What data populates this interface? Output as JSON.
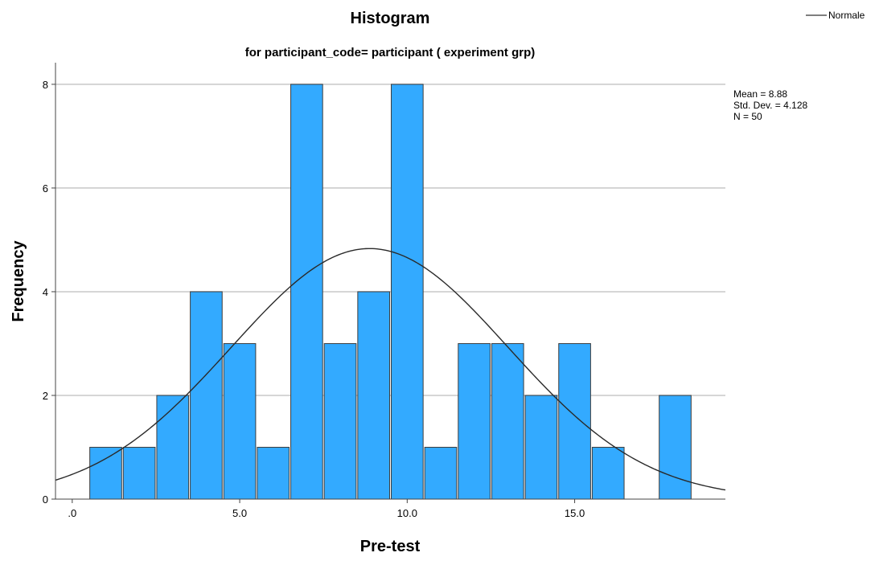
{
  "chart_data": {
    "type": "bar",
    "title": "Histogram",
    "subtitle": "for participant_code= participant ( experiment grp)",
    "xlabel": "Pre-test",
    "ylabel": "Frequency",
    "xlim": [
      -0.5,
      19.5
    ],
    "ylim": [
      0,
      8.2
    ],
    "x_ticks": [
      0,
      5,
      10,
      15
    ],
    "x_tick_labels": [
      ".0",
      "5.0",
      "10.0",
      "15.0"
    ],
    "y_ticks": [
      0,
      2,
      4,
      6,
      8
    ],
    "y_tick_labels": [
      "0",
      "2",
      "4",
      "6",
      "8"
    ],
    "grid": "horizontal",
    "bin_width": 1,
    "bins": [
      {
        "center": 1,
        "count": 1
      },
      {
        "center": 2,
        "count": 1
      },
      {
        "center": 3,
        "count": 2
      },
      {
        "center": 4,
        "count": 4
      },
      {
        "center": 5,
        "count": 3
      },
      {
        "center": 6,
        "count": 1
      },
      {
        "center": 7,
        "count": 8
      },
      {
        "center": 8,
        "count": 3
      },
      {
        "center": 9,
        "count": 4
      },
      {
        "center": 10,
        "count": 8
      },
      {
        "center": 11,
        "count": 1
      },
      {
        "center": 12,
        "count": 3
      },
      {
        "center": 13,
        "count": 3
      },
      {
        "center": 14,
        "count": 2
      },
      {
        "center": 15,
        "count": 3
      },
      {
        "center": 16,
        "count": 1
      },
      {
        "center": 18,
        "count": 2
      }
    ],
    "normal_curve": {
      "name": "Normale",
      "mean": 8.88,
      "sd": 4.128,
      "n": 50
    },
    "stats_lines": [
      "Mean = 8.88",
      "Std. Dev. = 4.128",
      "N = 50"
    ],
    "legend": {
      "entries": [
        "Normale"
      ],
      "position": "top-right"
    },
    "colors": {
      "bar": "#33aaff",
      "bar_edge": "#3d3d3d",
      "grid": "#c8c8c8",
      "axis": "#444444",
      "curve": "#2a2a2a"
    }
  }
}
